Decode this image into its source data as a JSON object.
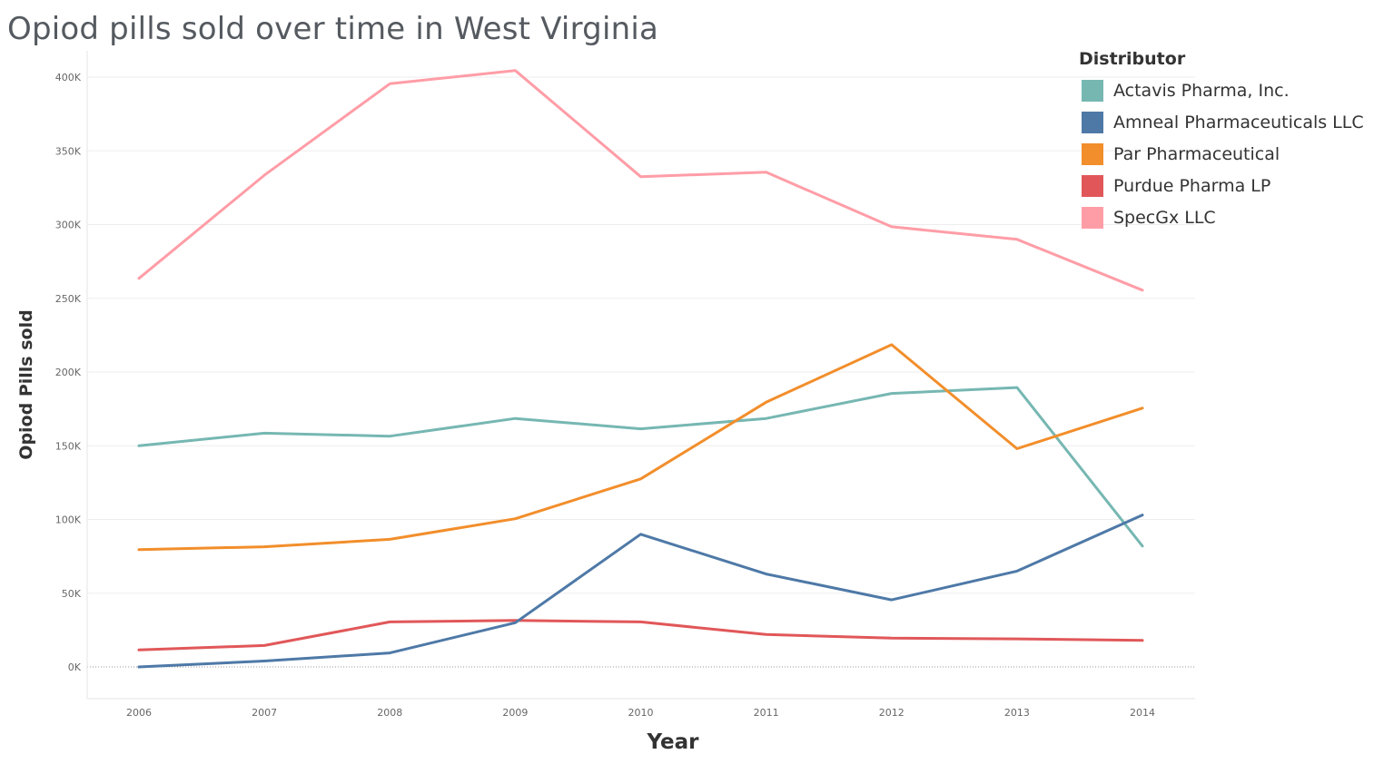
{
  "chart_data": {
    "type": "line",
    "title": "Opiod pills sold over time in West Virginia",
    "xlabel": "Year",
    "ylabel": "Opiod Pills sold",
    "ylim": [
      0,
      400000
    ],
    "y_ticks": [
      0,
      50000,
      100000,
      150000,
      200000,
      250000,
      300000,
      350000,
      400000
    ],
    "y_tick_labels": [
      "0K",
      "50K",
      "100K",
      "150K",
      "200K",
      "250K",
      "300K",
      "350K",
      "400K"
    ],
    "x": [
      "2006",
      "2007",
      "2008",
      "2009",
      "2010",
      "2011",
      "2012",
      "2013",
      "2014"
    ],
    "grid": "horizontal",
    "legend_title": "Distributor",
    "legend_position": "top-right",
    "series": [
      {
        "name": "Actavis Pharma, Inc.",
        "color": "#76b7b2",
        "values": [
          150000,
          158500,
          156500,
          168500,
          161500,
          168500,
          185500,
          189500,
          82000
        ]
      },
      {
        "name": "Amneal Pharmaceuticals LLC",
        "color": "#4e79a7",
        "values": [
          0,
          4000,
          9500,
          30000,
          90000,
          63000,
          45500,
          65000,
          103000
        ]
      },
      {
        "name": "Par Pharmaceutical",
        "color": "#f28e2b",
        "values": [
          79500,
          81500,
          86500,
          100500,
          127500,
          179500,
          218500,
          148000,
          175500
        ]
      },
      {
        "name": "Purdue Pharma LP",
        "color": "#e15759",
        "values": [
          11500,
          14500,
          30500,
          31500,
          30500,
          22000,
          19500,
          19000,
          18000
        ]
      },
      {
        "name": "SpecGx LLC",
        "color": "#ff9da7",
        "values": [
          263500,
          333500,
          395500,
          404500,
          332500,
          335500,
          298500,
          290000,
          255500
        ]
      }
    ]
  }
}
